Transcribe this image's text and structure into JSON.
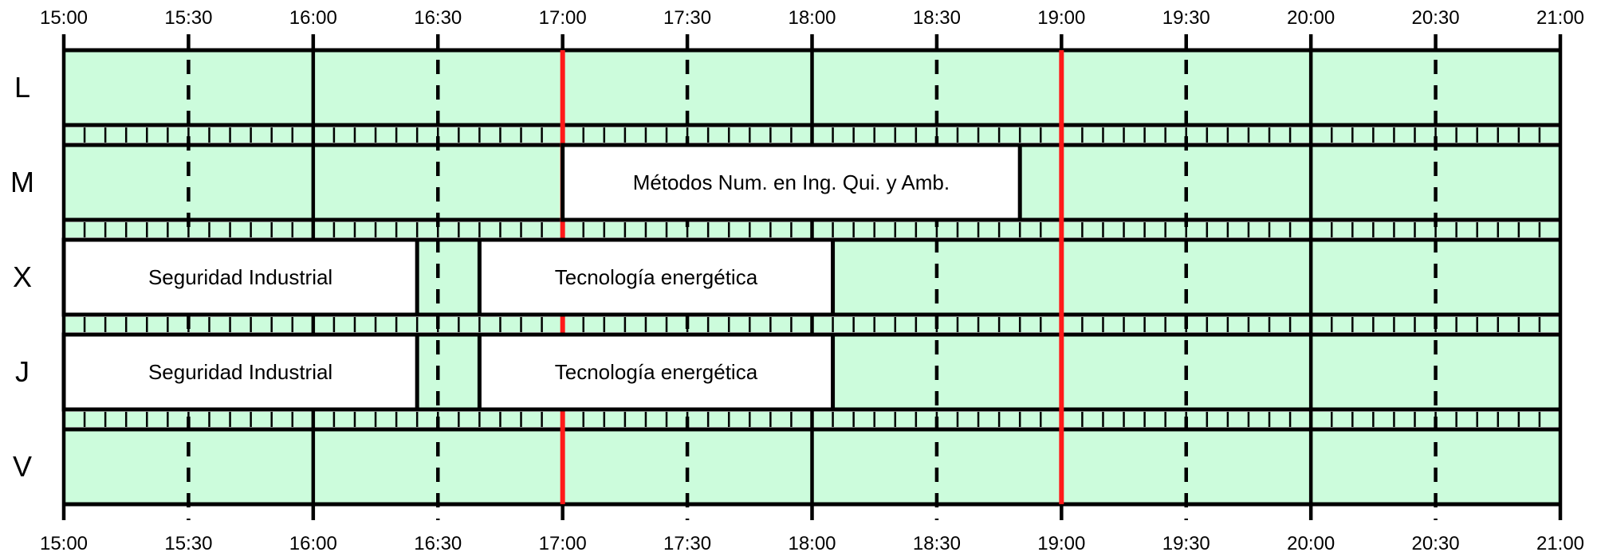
{
  "time_labels": [
    "15:00",
    "15:30",
    "16:00",
    "16:30",
    "17:00",
    "17:30",
    "18:00",
    "18:30",
    "19:00",
    "19:30",
    "20:00",
    "20:30",
    "21:00"
  ],
  "time_range": {
    "start_hour": 15,
    "end_hour": 21
  },
  "days": [
    {
      "label": "L",
      "classes": []
    },
    {
      "label": "M",
      "classes": [
        {
          "name": "Métodos Num. en Ing. Qui. y Amb.",
          "start": "17:00",
          "end": "18:50"
        }
      ]
    },
    {
      "label": "X",
      "classes": [
        {
          "name": "Seguridad Industrial",
          "start": "15:00",
          "end": "16:25"
        },
        {
          "name": "Tecnología energética",
          "start": "16:40",
          "end": "18:05"
        }
      ]
    },
    {
      "label": "J",
      "classes": [
        {
          "name": "Seguridad Industrial",
          "start": "15:00",
          "end": "16:25"
        },
        {
          "name": "Tecnología energética",
          "start": "16:40",
          "end": "18:05"
        }
      ]
    },
    {
      "label": "V",
      "classes": []
    }
  ],
  "highlight_times": [
    "17:00",
    "19:00"
  ],
  "colors": {
    "free_slot": "#ccfcdc",
    "class_block": "#ffffff",
    "grid_line": "#000000",
    "highlight_line": "#ff1a1a"
  }
}
